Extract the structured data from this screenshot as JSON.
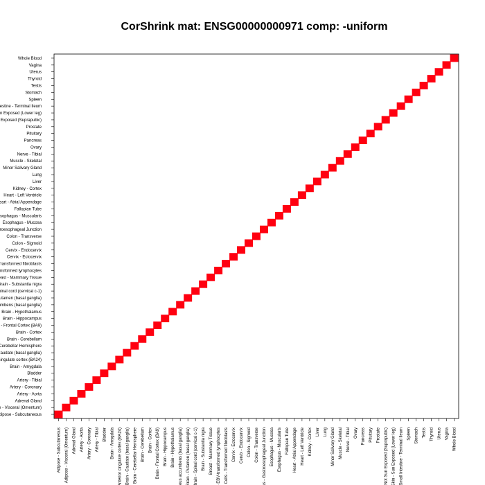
{
  "chart_data": {
    "type": "heatmap",
    "title": "CorShrink mat: ENSG00000000971 comp: -uniform",
    "xlabel": "",
    "ylabel": "",
    "labels": [
      "Adipose - Subcutaneous",
      "Adipose - Visceral (Omentum)",
      "Adrenal Gland",
      "Artery - Aorta",
      "Artery - Coronary",
      "Artery - Tibial",
      "Bladder",
      "Brain - Amygdala",
      "Brain - Anterior cingulate cortex (BA24)",
      "Brain - Caudate (basal ganglia)",
      "Brain - Cerebellar Hemisphere",
      "Brain - Cerebellum",
      "Brain - Cortex",
      "Brain - Frontal Cortex (BA9)",
      "Brain - Hippocampus",
      "Brain - Hypothalamus",
      "Brain - Nucleus accumbens (basal ganglia)",
      "Brain - Putamen (basal ganglia)",
      "Brain - Spinal cord (cervical c-1)",
      "Brain - Substantia nigra",
      "Breast - Mammary Tissue",
      "Cells - EBV-transformed lymphocytes",
      "Cells - Transformed fibroblasts",
      "Cervix - Ectocervix",
      "Cervix - Endocervix",
      "Colon - Sigmoid",
      "Colon - Transverse",
      "Esophagus - Gastroesophageal Junction",
      "Esophagus - Mucosa",
      "Esophagus - Muscularis",
      "Fallopian Tube",
      "Heart - Atrial Appendage",
      "Heart - Left Ventricle",
      "Kidney - Cortex",
      "Liver",
      "Lung",
      "Minor Salivary Gland",
      "Muscle - Skeletal",
      "Nerve - Tibial",
      "Ovary",
      "Pancreas",
      "Pituitary",
      "Prostate",
      "Skin - Not Sun Exposed (Suprapubic)",
      "Skin - Sun Exposed (Lower leg)",
      "Small Intestine - Terminal Ileum",
      "Spleen",
      "Stomach",
      "Testis",
      "Thyroid",
      "Uterus",
      "Vagina",
      "Whole Blood"
    ],
    "matrix_description": "identity",
    "diagonal_value": 1,
    "off_diagonal_value": 0,
    "colors": {
      "high": "#ff0010",
      "low": "#ffffff",
      "frame": "#000000"
    },
    "grid": false,
    "legend": "none"
  }
}
